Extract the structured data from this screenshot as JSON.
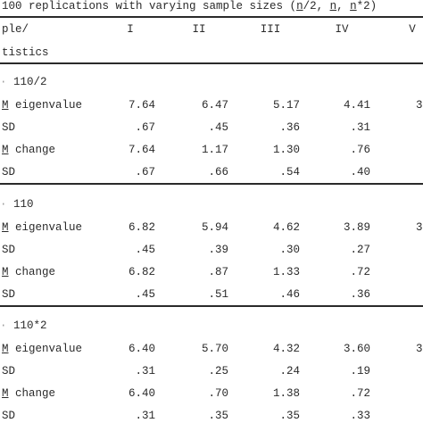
{
  "caption": {
    "pre": "100 replications with varying sample sizes (",
    "n1": "n",
    "mid1": "/2, ",
    "n2": "n",
    "mid2": ", ",
    "n3": "n",
    "post": "*2)"
  },
  "header": {
    "stub_line1": "ple/",
    "stub_line2": "tistics",
    "columns": [
      "I",
      "II",
      "III",
      "IV",
      "V"
    ]
  },
  "groups": [
    {
      "label": "110/2",
      "rows": [
        {
          "m": "M",
          "label": " eigenvalue",
          "values": [
            "7.64",
            "6.47",
            "5.17",
            "4.41"
          ],
          "last": "3"
        },
        {
          "m": "",
          "label": "SD",
          "values": [
            ".67",
            ".45",
            ".36",
            ".31"
          ],
          "last": ""
        },
        {
          "m": "M",
          "label": " change",
          "values": [
            "7.64",
            "1.17",
            "1.30",
            ".76"
          ],
          "last": ""
        },
        {
          "m": "",
          "label": "SD",
          "values": [
            ".67",
            ".66",
            ".54",
            ".40"
          ],
          "last": ""
        }
      ]
    },
    {
      "label": "110",
      "rows": [
        {
          "m": "M",
          "label": " eigenvalue",
          "values": [
            "6.82",
            "5.94",
            "4.62",
            "3.89"
          ],
          "last": "3"
        },
        {
          "m": "",
          "label": "SD",
          "values": [
            ".45",
            ".39",
            ".30",
            ".27"
          ],
          "last": ""
        },
        {
          "m": "M",
          "label": " change",
          "values": [
            "6.82",
            ".87",
            "1.33",
            ".72"
          ],
          "last": ""
        },
        {
          "m": "",
          "label": "SD",
          "values": [
            ".45",
            ".51",
            ".46",
            ".36"
          ],
          "last": ""
        }
      ]
    },
    {
      "label": "110*2",
      "rows": [
        {
          "m": "M",
          "label": " eigenvalue",
          "values": [
            "6.40",
            "5.70",
            "4.32",
            "3.60"
          ],
          "last": "3"
        },
        {
          "m": "",
          "label": "SD",
          "values": [
            ".31",
            ".25",
            ".24",
            ".19"
          ],
          "last": ""
        },
        {
          "m": "M",
          "label": " change",
          "values": [
            "6.40",
            ".70",
            "1.38",
            ".72"
          ],
          "last": ""
        },
        {
          "m": "",
          "label": "SD",
          "values": [
            ".31",
            ".35",
            ".35",
            ".33"
          ],
          "last": ""
        }
      ]
    }
  ]
}
